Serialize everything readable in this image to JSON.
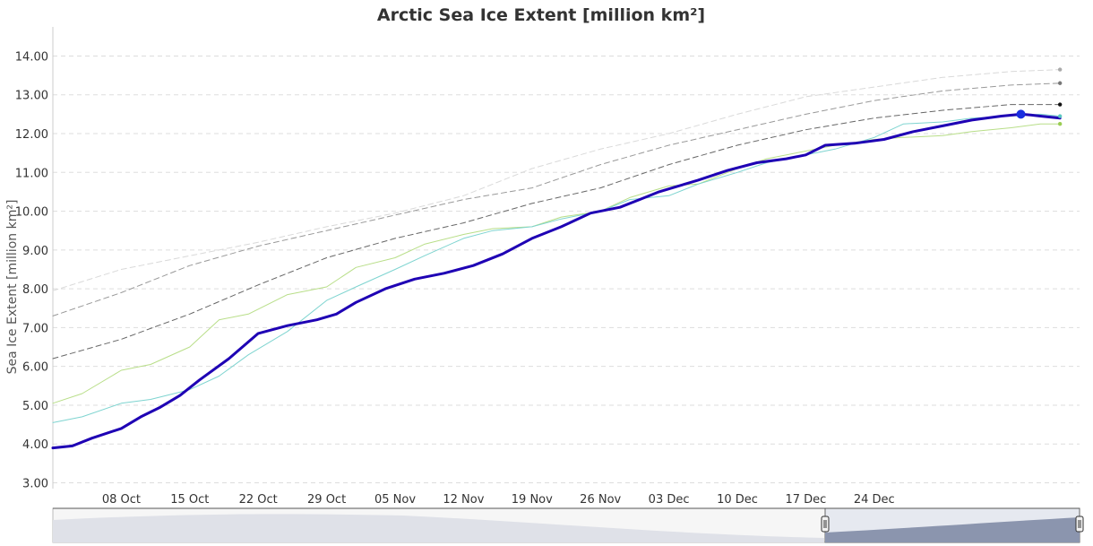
{
  "chart_data": {
    "type": "line",
    "title": "Arctic Sea Ice Extent [million km²]",
    "ylabel": "Sea Ice Extent [million km²]",
    "xlabel": "",
    "ylim": [
      2.85,
      14.75
    ],
    "xlim": [
      0,
      105
    ],
    "yticks": [
      "3.00",
      "4.00",
      "5.00",
      "6.00",
      "7.00",
      "8.00",
      "9.00",
      "10.00",
      "11.00",
      "12.00",
      "13.00",
      "14.00"
    ],
    "ytick_values": [
      3,
      4,
      5,
      6,
      7,
      8,
      9,
      10,
      11,
      12,
      13,
      14
    ],
    "xticks": [
      "08 Oct",
      "15 Oct",
      "22 Oct",
      "29 Oct",
      "05 Nov",
      "12 Nov",
      "19 Nov",
      "26 Nov",
      "03 Dec",
      "10 Dec",
      "17 Dec",
      "24 Dec"
    ],
    "xtick_values": [
      7,
      14,
      21,
      28,
      35,
      42,
      49,
      56,
      63,
      70,
      77,
      84
    ],
    "grid": true,
    "x_unit": "days from 01 Oct",
    "series": [
      {
        "color": "#d9d9d9",
        "style": "dashed",
        "width": 1,
        "x": [
          0,
          7,
          14,
          21,
          28,
          35,
          42,
          49,
          56,
          63,
          70,
          77,
          84,
          91,
          98,
          103
        ],
        "values": [
          7.95,
          8.5,
          8.85,
          9.2,
          9.6,
          9.95,
          10.4,
          11.1,
          11.6,
          12.0,
          12.5,
          12.95,
          13.2,
          13.45,
          13.6,
          13.65
        ]
      },
      {
        "color": "#999999",
        "style": "dashed",
        "width": 1,
        "x": [
          0,
          7,
          14,
          21,
          28,
          35,
          42,
          49,
          56,
          63,
          70,
          77,
          84,
          91,
          98,
          103
        ],
        "values": [
          7.3,
          7.9,
          8.6,
          9.1,
          9.5,
          9.9,
          10.3,
          10.6,
          11.2,
          11.7,
          12.1,
          12.5,
          12.85,
          13.1,
          13.25,
          13.3
        ]
      },
      {
        "color": "#666666",
        "style": "dashed",
        "width": 1,
        "x": [
          0,
          7,
          14,
          21,
          28,
          35,
          42,
          49,
          56,
          63,
          70,
          77,
          84,
          91,
          98,
          103
        ],
        "values": [
          6.2,
          6.7,
          7.35,
          8.1,
          8.8,
          9.3,
          9.7,
          10.2,
          10.6,
          11.2,
          11.7,
          12.1,
          12.4,
          12.6,
          12.75,
          12.75
        ]
      },
      {
        "color": "#b8de88",
        "style": "solid",
        "width": 1,
        "x": [
          0,
          3,
          7,
          10,
          14,
          17,
          20,
          24,
          28,
          31,
          35,
          38,
          42,
          45,
          49,
          52,
          56,
          59,
          63,
          66,
          70,
          73,
          77,
          80,
          84,
          87,
          91,
          94,
          98,
          101,
          103
        ],
        "values": [
          5.05,
          5.3,
          5.9,
          6.05,
          6.5,
          7.2,
          7.35,
          7.85,
          8.05,
          8.55,
          8.8,
          9.15,
          9.4,
          9.55,
          9.6,
          9.85,
          10.0,
          10.35,
          10.65,
          10.7,
          11.1,
          11.35,
          11.55,
          11.7,
          11.85,
          11.9,
          11.95,
          12.05,
          12.15,
          12.25,
          12.25
        ]
      },
      {
        "color": "#7ed4d0",
        "style": "solid",
        "width": 1,
        "x": [
          0,
          3,
          7,
          10,
          14,
          17,
          20,
          24,
          28,
          31,
          35,
          38,
          42,
          45,
          49,
          52,
          56,
          59,
          63,
          66,
          70,
          73,
          77,
          80,
          84,
          87,
          91,
          94,
          98,
          101,
          103
        ],
        "values": [
          4.55,
          4.7,
          5.05,
          5.15,
          5.4,
          5.75,
          6.3,
          6.9,
          7.7,
          8.05,
          8.5,
          8.85,
          9.3,
          9.5,
          9.6,
          9.8,
          10.0,
          10.3,
          10.4,
          10.7,
          11.0,
          11.25,
          11.45,
          11.6,
          11.9,
          12.25,
          12.3,
          12.4,
          12.45,
          12.5,
          12.45
        ]
      },
      {
        "color": "#1e00b4",
        "style": "solid",
        "width": 3,
        "x": [
          0,
          2,
          4,
          7,
          9,
          11,
          13,
          15,
          18,
          21,
          24,
          27,
          29,
          31,
          34,
          37,
          40,
          43,
          46,
          49,
          52,
          55,
          58,
          60,
          62,
          64,
          66,
          69,
          72,
          75,
          77,
          79,
          82,
          85,
          88,
          91,
          94,
          97,
          99,
          100,
          101,
          103
        ],
        "values": [
          3.9,
          3.95,
          4.15,
          4.4,
          4.7,
          4.95,
          5.25,
          5.65,
          6.2,
          6.85,
          7.05,
          7.2,
          7.35,
          7.65,
          8.0,
          8.25,
          8.4,
          8.6,
          8.9,
          9.3,
          9.6,
          9.95,
          10.1,
          10.3,
          10.5,
          10.65,
          10.8,
          11.05,
          11.25,
          11.35,
          11.45,
          11.7,
          11.75,
          11.85,
          12.05,
          12.2,
          12.35,
          12.45,
          12.5,
          12.48,
          12.45,
          12.4
        ]
      }
    ]
  },
  "navigator": {
    "left_handle_fraction": 0.757,
    "right_handle_fraction": 1.0
  }
}
